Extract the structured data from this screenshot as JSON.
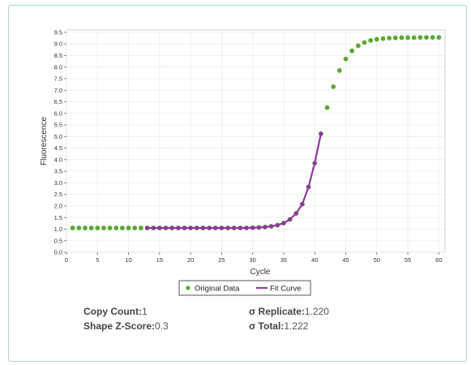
{
  "chart_data": {
    "type": "scatter",
    "title": "",
    "xlabel": "Cycle",
    "ylabel": "Fluorescence",
    "xlim": [
      0,
      61
    ],
    "ylim": [
      0,
      9.6
    ],
    "x_ticks": [
      0,
      5,
      10,
      15,
      20,
      25,
      30,
      35,
      40,
      45,
      50,
      55,
      60
    ],
    "y_ticks": [
      0.0,
      0.5,
      1.0,
      1.5,
      2.0,
      2.5,
      3.0,
      3.5,
      4.0,
      4.5,
      5.0,
      5.5,
      6.0,
      6.5,
      7.0,
      7.5,
      8.0,
      8.5,
      9.0,
      9.5
    ],
    "grid": true,
    "legend_position": "bottom-center",
    "series": [
      {
        "name": "Original Data",
        "kind": "points",
        "color": "#5aa832",
        "x": [
          1,
          2,
          3,
          4,
          5,
          6,
          7,
          8,
          9,
          10,
          11,
          12,
          13,
          14,
          15,
          16,
          17,
          18,
          19,
          20,
          21,
          22,
          23,
          24,
          25,
          26,
          27,
          28,
          29,
          30,
          31,
          32,
          33,
          34,
          35,
          36,
          37,
          38,
          39,
          40,
          41,
          42,
          43,
          44,
          45,
          46,
          47,
          48,
          49,
          50,
          51,
          52,
          53,
          54,
          55,
          56,
          57,
          58,
          59,
          60
        ],
        "y": [
          1.05,
          1.05,
          1.05,
          1.05,
          1.05,
          1.05,
          1.05,
          1.05,
          1.05,
          1.05,
          1.05,
          1.05,
          1.05,
          1.05,
          1.05,
          1.05,
          1.05,
          1.05,
          1.05,
          1.05,
          1.05,
          1.05,
          1.05,
          1.05,
          1.05,
          1.05,
          1.05,
          1.05,
          1.05,
          1.06,
          1.07,
          1.09,
          1.12,
          1.17,
          1.26,
          1.42,
          1.68,
          2.08,
          2.82,
          3.85,
          5.12,
          6.25,
          7.15,
          7.85,
          8.35,
          8.7,
          8.92,
          9.06,
          9.15,
          9.2,
          9.23,
          9.25,
          9.26,
          9.27,
          9.27,
          9.27,
          9.28,
          9.28,
          9.28,
          9.28
        ]
      },
      {
        "name": "Fit Curve",
        "kind": "line",
        "color": "#8b3a9a",
        "marker_color": "#8b3a9a",
        "x": [
          13,
          14,
          15,
          16,
          17,
          18,
          19,
          20,
          21,
          22,
          23,
          24,
          25,
          26,
          27,
          28,
          29,
          30,
          31,
          32,
          33,
          34,
          35,
          36,
          37,
          38,
          39,
          40,
          41
        ],
        "y": [
          1.05,
          1.05,
          1.05,
          1.05,
          1.05,
          1.05,
          1.05,
          1.05,
          1.05,
          1.05,
          1.05,
          1.05,
          1.05,
          1.05,
          1.05,
          1.05,
          1.05,
          1.06,
          1.07,
          1.09,
          1.12,
          1.17,
          1.26,
          1.42,
          1.68,
          2.08,
          2.82,
          3.85,
          5.12
        ]
      }
    ]
  },
  "stats": {
    "copy_count_label": "Copy Count:",
    "copy_count_value": "1",
    "shape_z_label": "Shape Z-Score:",
    "shape_z_value": "0.3",
    "replicate_label": "σ Replicate:",
    "replicate_value": "1.220",
    "total_label": "σ Total:",
    "total_value": "1.222"
  }
}
